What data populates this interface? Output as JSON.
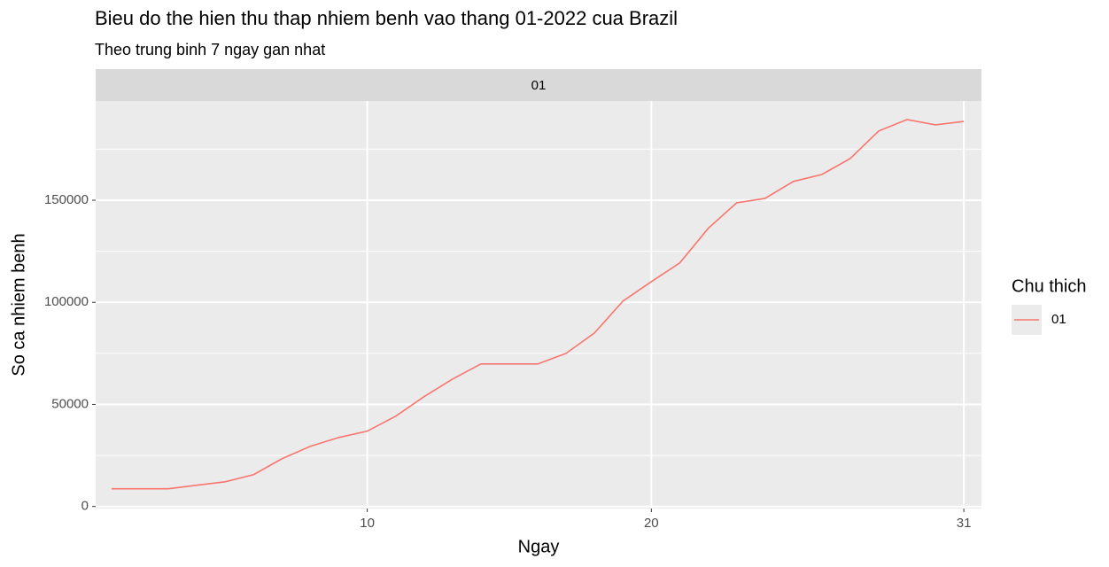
{
  "chart_data": {
    "type": "line",
    "title": "Bieu do the hien thu thap nhiem benh vao thang 01-2022 cua Brazil",
    "subtitle": "Theo trung binh 7 ngay gan nhat",
    "facet_label": "01",
    "x_label": "Ngay",
    "y_label": "So ca nhiem benh",
    "legend_title": "Chu thich",
    "legend_position": "right",
    "x": [
      1,
      2,
      3,
      4,
      5,
      6,
      7,
      8,
      9,
      10,
      11,
      12,
      13,
      14,
      15,
      16,
      17,
      18,
      19,
      20,
      21,
      22,
      23,
      24,
      25,
      26,
      27,
      28,
      29,
      30,
      31
    ],
    "series": [
      {
        "name": "01",
        "color": "#f8766d",
        "values": [
          8700,
          8700,
          8700,
          10400,
          12100,
          15600,
          23400,
          29500,
          33800,
          36900,
          44200,
          53800,
          62400,
          69800,
          69800,
          69800,
          75000,
          85000,
          100600,
          110100,
          119300,
          136200,
          148700,
          150900,
          159200,
          162600,
          170400,
          183900,
          189500,
          186900,
          188600
        ]
      }
    ],
    "xlim": [
      0.44,
      31.62
    ],
    "xticks": [
      10,
      20,
      31
    ],
    "ylim": [
      -1000,
      198600
    ],
    "yticks": [
      0,
      50000,
      100000,
      150000
    ],
    "y_minor_ticks": [
      25000,
      75000,
      125000,
      175000
    ],
    "grid": true
  }
}
